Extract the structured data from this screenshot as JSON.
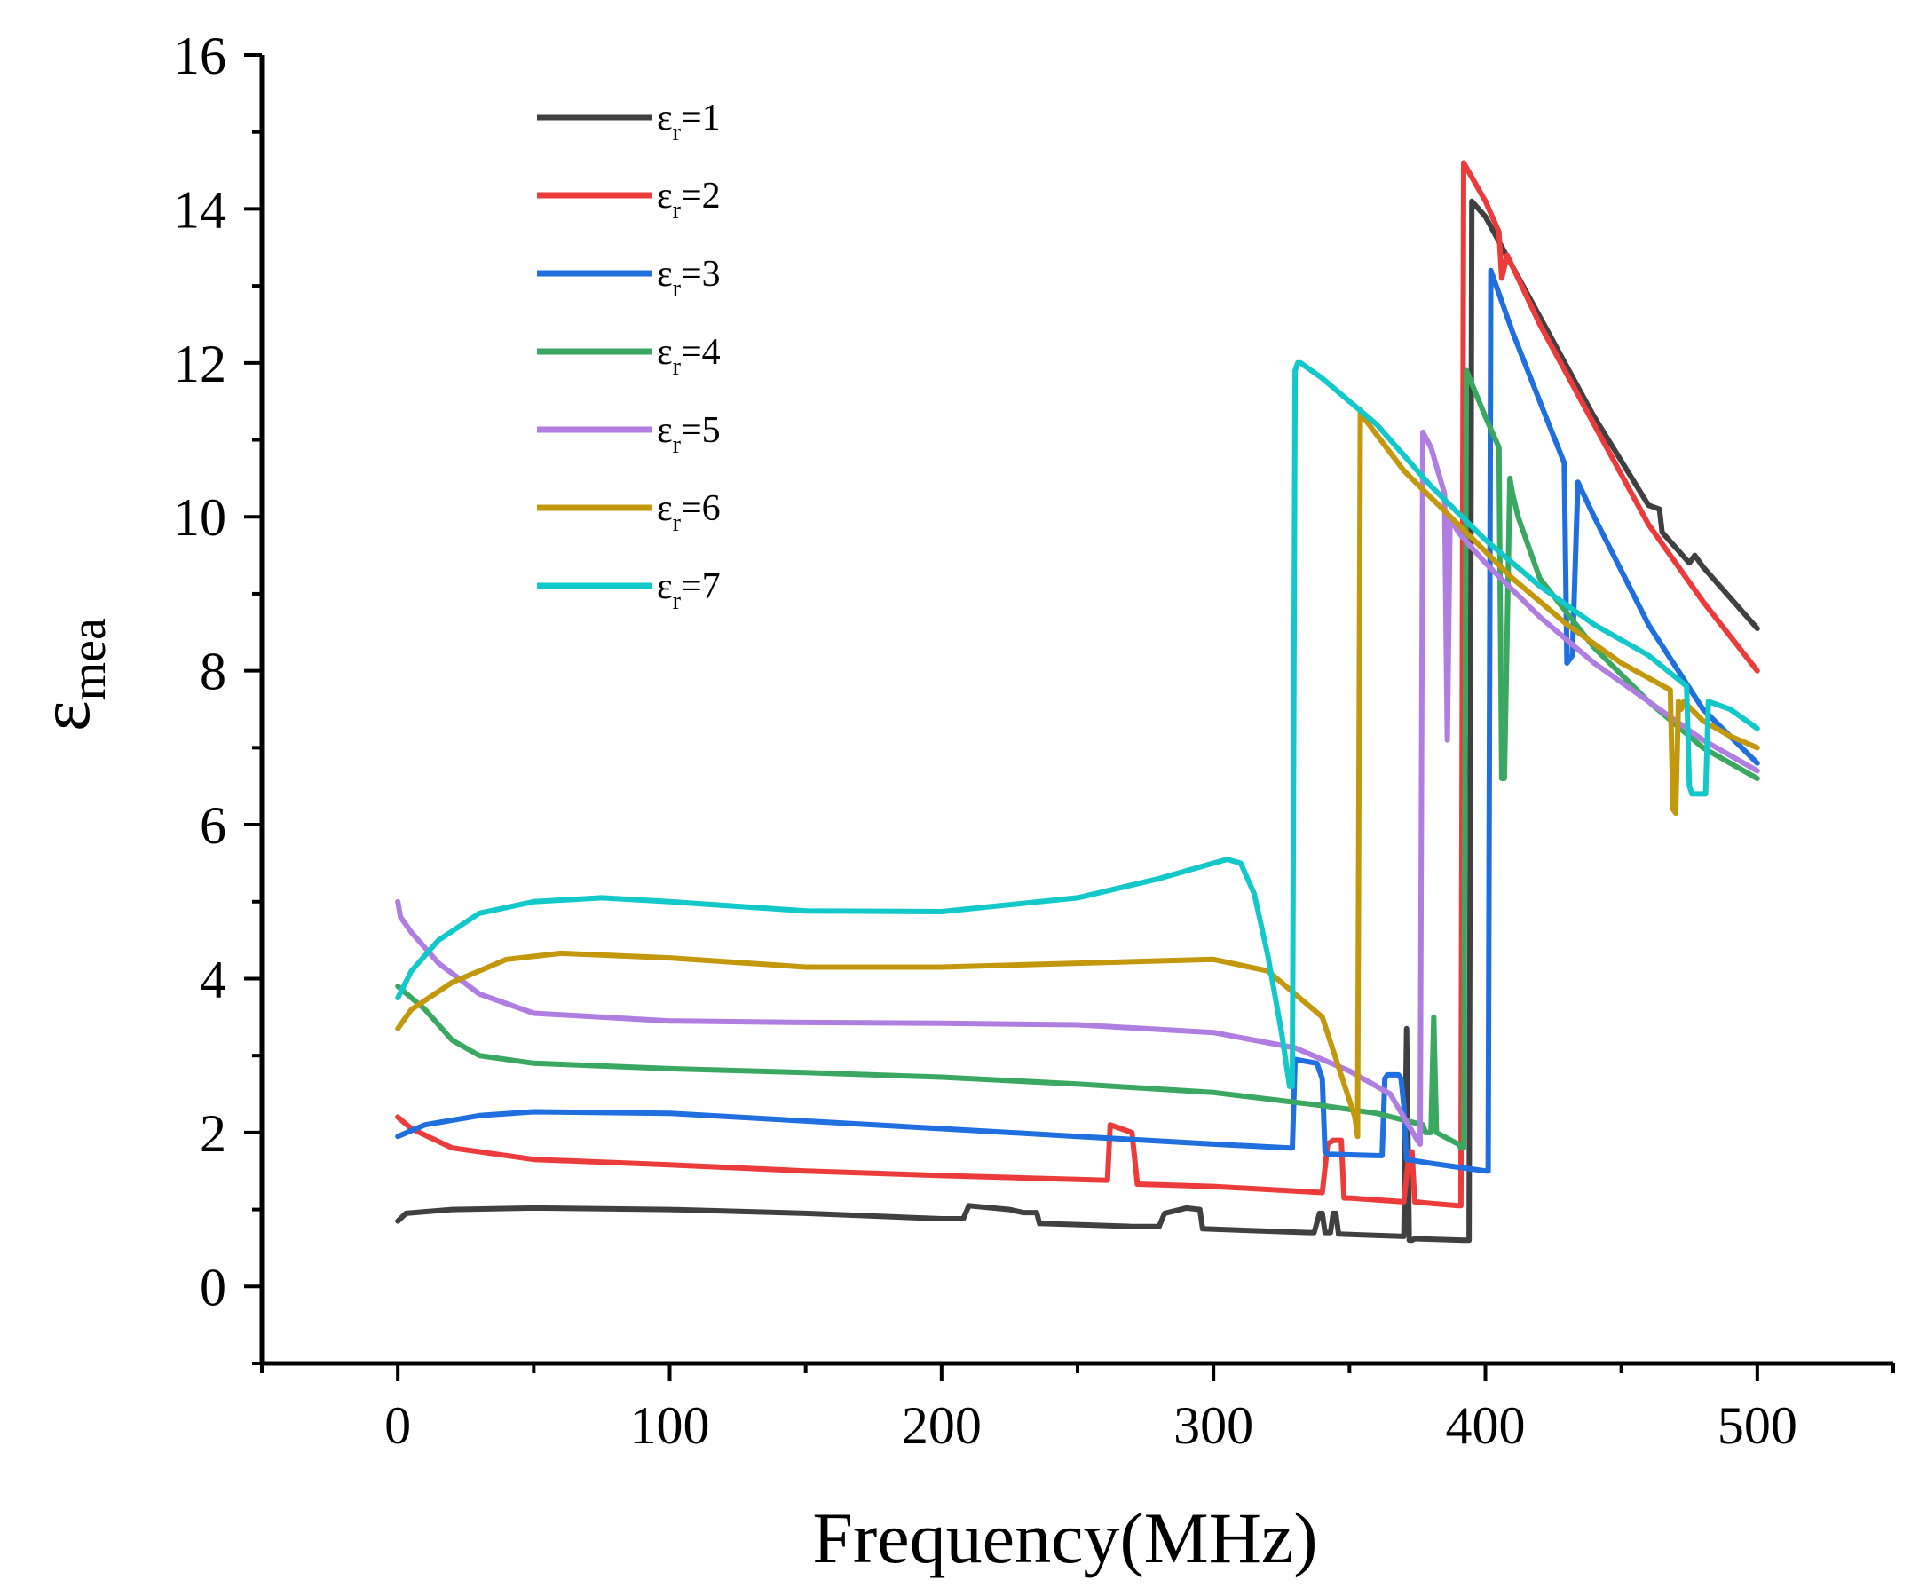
{
  "chart_data": {
    "type": "line",
    "title": "",
    "xlabel": "Frequency(MHz)",
    "ylabel": {
      "base": "ε",
      "subscript": "mea"
    },
    "xlim": [
      -50,
      550
    ],
    "ylim": [
      -1,
      16
    ],
    "xticks": [
      0,
      100,
      200,
      300,
      400,
      500
    ],
    "xtick_labels": [
      "0",
      "100",
      "200",
      "300",
      "400",
      "500"
    ],
    "yticks": [
      0,
      2,
      4,
      6,
      8,
      10,
      12,
      14,
      16
    ],
    "ytick_labels": [
      "0",
      "2",
      "4",
      "6",
      "8",
      "10",
      "12",
      "14",
      "16"
    ],
    "grid": false,
    "legend_position": "top-left",
    "series": [
      {
        "name": "εr=1",
        "label_base": "ε",
        "label_sub": "r",
        "label_rest": "=1",
        "color": "#404040",
        "x": [
          0,
          3,
          20,
          50,
          100,
          150,
          200,
          208,
          210,
          225,
          230,
          235,
          236,
          270,
          280,
          282,
          290,
          295,
          296,
          335,
          337,
          339,
          340,
          341,
          343,
          344,
          345,
          346,
          370,
          371,
          372,
          373,
          374,
          392,
          393,
          394,
          395,
          400,
          420,
          440,
          460,
          464,
          465,
          470,
          475,
          477,
          480,
          500
        ],
        "y": [
          0.85,
          0.95,
          1.0,
          1.02,
          1.0,
          0.95,
          0.88,
          0.88,
          1.05,
          1.0,
          0.96,
          0.96,
          0.82,
          0.78,
          0.78,
          0.95,
          1.02,
          1.0,
          0.75,
          0.7,
          0.7,
          0.95,
          0.95,
          0.7,
          0.7,
          0.95,
          0.95,
          0.68,
          0.65,
          3.35,
          0.6,
          0.6,
          0.62,
          0.6,
          0.6,
          0.6,
          14.1,
          13.9,
          12.6,
          11.3,
          10.15,
          10.1,
          9.8,
          9.6,
          9.4,
          9.5,
          9.35,
          8.55
        ]
      },
      {
        "name": "εr=2",
        "label_base": "ε",
        "label_sub": "r",
        "label_rest": "=2",
        "color": "#ec3b3b",
        "x": [
          0,
          5,
          20,
          50,
          100,
          150,
          200,
          260,
          261,
          262,
          266,
          270,
          272,
          300,
          340,
          342,
          344,
          347,
          348,
          350,
          370,
          372,
          373,
          374,
          380,
          390,
          391,
          392,
          400,
          405,
          406,
          408,
          420,
          440,
          460,
          480,
          500
        ],
        "y": [
          2.2,
          2.05,
          1.8,
          1.65,
          1.58,
          1.5,
          1.44,
          1.38,
          1.38,
          2.1,
          2.05,
          2.0,
          1.33,
          1.3,
          1.22,
          1.85,
          1.9,
          1.9,
          1.15,
          1.15,
          1.1,
          1.75,
          1.75,
          1.1,
          1.08,
          1.05,
          1.05,
          14.6,
          14.1,
          13.7,
          13.1,
          13.4,
          12.5,
          11.2,
          9.9,
          8.9,
          8.0
        ]
      },
      {
        "name": "εr=3",
        "label_base": "ε",
        "label_sub": "r",
        "label_rest": "=3",
        "color": "#1f6fde",
        "x": [
          0,
          10,
          30,
          50,
          100,
          150,
          200,
          250,
          300,
          328,
          329,
          330,
          338,
          340,
          341,
          342,
          360,
          362,
          363,
          364,
          368,
          369,
          370,
          371,
          380,
          400,
          401,
          402,
          410,
          420,
          429,
          430,
          432,
          434,
          440,
          460,
          480,
          500
        ],
        "y": [
          1.95,
          2.1,
          2.22,
          2.27,
          2.25,
          2.15,
          2.05,
          1.95,
          1.85,
          1.8,
          1.8,
          2.95,
          2.9,
          2.7,
          1.75,
          1.72,
          1.7,
          1.7,
          2.7,
          2.75,
          2.75,
          2.7,
          2.35,
          1.65,
          1.6,
          1.5,
          1.5,
          13.2,
          12.4,
          11.5,
          10.7,
          8.1,
          8.2,
          10.45,
          10.0,
          8.6,
          7.5,
          6.8
        ]
      },
      {
        "name": "εr=4",
        "label_base": "ε",
        "label_sub": "r",
        "label_rest": "=4",
        "color": "#3aa860",
        "x": [
          0,
          10,
          20,
          30,
          50,
          100,
          150,
          200,
          250,
          300,
          340,
          360,
          377,
          378,
          380,
          381,
          382,
          390,
          391,
          392,
          393,
          400,
          405,
          406,
          407,
          408,
          409,
          410,
          412,
          420,
          440,
          460,
          480,
          500
        ],
        "y": [
          3.9,
          3.6,
          3.2,
          3.0,
          2.9,
          2.83,
          2.78,
          2.72,
          2.63,
          2.52,
          2.35,
          2.25,
          2.1,
          2.0,
          2.0,
          3.5,
          2.0,
          1.85,
          1.8,
          1.8,
          11.9,
          11.3,
          10.9,
          6.6,
          6.6,
          8.5,
          10.5,
          10.3,
          10.0,
          9.2,
          8.3,
          7.6,
          7.0,
          6.6
        ]
      },
      {
        "name": "εr=5",
        "label_base": "ε",
        "label_sub": "r",
        "label_rest": "=5",
        "color": "#b07de0",
        "x": [
          0,
          1,
          5,
          15,
          30,
          50,
          100,
          150,
          200,
          250,
          300,
          330,
          350,
          365,
          375,
          376,
          377,
          380,
          385,
          386,
          387,
          390,
          400,
          420,
          440,
          460,
          480,
          500
        ],
        "y": [
          5.0,
          4.8,
          4.6,
          4.2,
          3.8,
          3.55,
          3.45,
          3.43,
          3.42,
          3.4,
          3.3,
          3.1,
          2.8,
          2.5,
          1.9,
          1.85,
          11.1,
          10.9,
          10.3,
          7.1,
          10.0,
          9.8,
          9.4,
          8.7,
          8.1,
          7.6,
          7.1,
          6.7
        ]
      },
      {
        "name": "εr=6",
        "label_base": "ε",
        "label_sub": "r",
        "label_rest": "=6",
        "color": "#c4980c",
        "x": [
          0,
          5,
          20,
          40,
          60,
          100,
          150,
          200,
          250,
          300,
          320,
          340,
          352,
          353,
          354,
          355,
          370,
          390,
          410,
          430,
          450,
          468,
          469,
          470,
          471,
          472,
          473,
          480,
          490,
          500
        ],
        "y": [
          3.35,
          3.6,
          3.95,
          4.25,
          4.33,
          4.27,
          4.15,
          4.15,
          4.2,
          4.25,
          4.1,
          3.5,
          2.2,
          1.95,
          11.4,
          11.3,
          10.6,
          9.9,
          9.2,
          8.6,
          8.1,
          7.75,
          6.2,
          6.15,
          7.6,
          7.5,
          7.6,
          7.35,
          7.15,
          7.0
        ]
      },
      {
        "name": "εr=7",
        "label_base": "ε",
        "label_sub": "r",
        "label_rest": "=7",
        "color": "#12c8c8",
        "x": [
          0,
          5,
          15,
          30,
          50,
          75,
          100,
          150,
          200,
          250,
          280,
          300,
          305,
          310,
          315,
          320,
          325,
          328,
          329,
          330,
          331,
          332,
          340,
          360,
          380,
          400,
          420,
          440,
          460,
          474,
          475,
          476,
          480,
          481,
          482,
          490,
          500
        ],
        "y": [
          3.75,
          4.1,
          4.5,
          4.85,
          5.0,
          5.05,
          5.0,
          4.88,
          4.87,
          5.05,
          5.3,
          5.5,
          5.55,
          5.5,
          5.1,
          4.3,
          3.3,
          2.6,
          2.6,
          11.9,
          12.0,
          12.0,
          11.8,
          11.2,
          10.4,
          9.7,
          9.1,
          8.6,
          8.2,
          7.8,
          6.5,
          6.4,
          6.4,
          6.4,
          7.6,
          7.5,
          7.25
        ]
      }
    ]
  }
}
